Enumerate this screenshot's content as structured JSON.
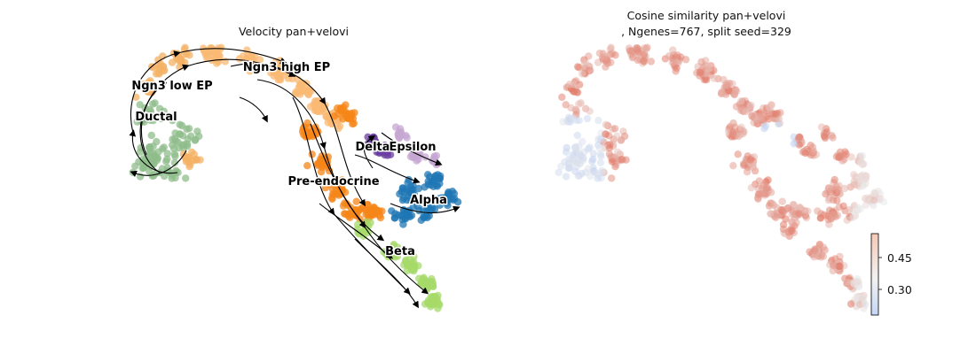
{
  "chart_data": [
    {
      "type": "scatter",
      "title": "Velocity pan+velovi",
      "xlabel": "",
      "ylabel": "",
      "grid": false,
      "legend": "on-data cluster labels",
      "streamlines": "black streamlines with arrowheads",
      "clusters": [
        {
          "name": "Ngn3 low EP",
          "color": "#f4b266"
        },
        {
          "name": "Ngn3 high EP",
          "color": "#f9b974"
        },
        {
          "name": "Ductal",
          "color": "#8fbc8b"
        },
        {
          "name": "Pre-endocrine",
          "color": "#f58518"
        },
        {
          "name": "Delta",
          "color": "#6b3fa0"
        },
        {
          "name": "Epsilon",
          "color": "#c6a7d2"
        },
        {
          "name": "Alpha",
          "color": "#1f77b4"
        },
        {
          "name": "Beta",
          "color": "#a6d96a"
        }
      ],
      "visible_labels": [
        {
          "id": "ngn3-low-ep",
          "text": "Ngn3 low EP"
        },
        {
          "id": "ngn3-high-ep",
          "text": "Ngn3 high EP"
        },
        {
          "id": "ductal",
          "text": "Ductal"
        },
        {
          "id": "pre-endocrine",
          "text": "Pre-endocrine"
        },
        {
          "id": "delta",
          "text": "Delta"
        },
        {
          "id": "epsilon",
          "text": "Epsilon"
        },
        {
          "id": "alpha",
          "text": "Alpha"
        },
        {
          "id": "beta",
          "text": "Beta"
        }
      ]
    },
    {
      "type": "scatter",
      "title_line1": "Cosine similarity pan+velovi",
      "title_line2": ", Ngenes=767, split seed=329",
      "xlabel": "",
      "ylabel": "",
      "grid": false,
      "colormap": "coolwarm",
      "colorbar": {
        "ticks": [
          0.3,
          0.45
        ],
        "tick_labels": [
          "0.30",
          "0.45"
        ],
        "range": [
          0.22,
          0.53
        ],
        "low_color": "#c6d6f5",
        "mid_color": "#f2f2f2",
        "high_color": "#e07a5f"
      },
      "value_summary": "mostly 0.40–0.50 (light red); lower values (~0.25–0.30, light blue) on the inner edge of the left arc, near the Alpha/Delta region and at the far right tip"
    }
  ]
}
